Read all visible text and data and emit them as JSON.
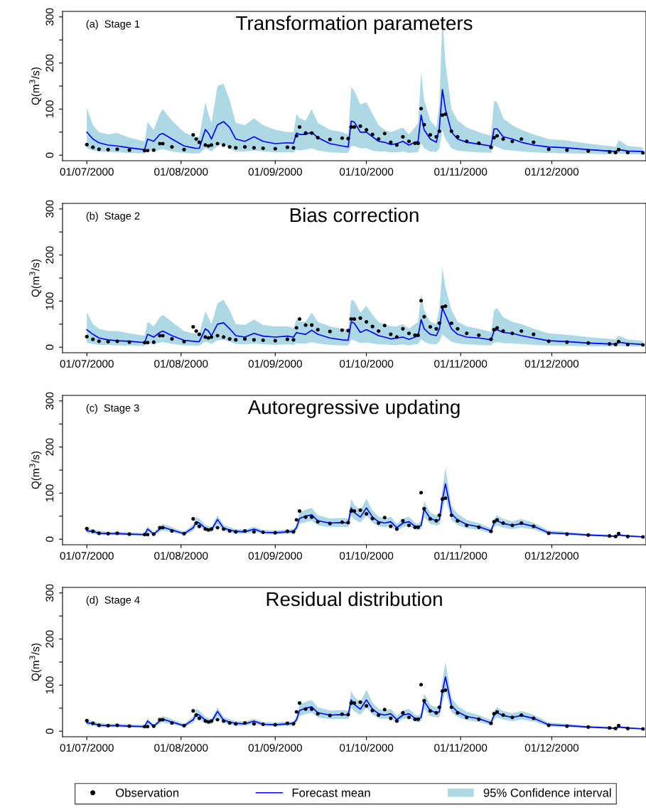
{
  "chart_data": [
    {
      "type": "line",
      "title": "Transformation parameters",
      "subtitle": "(a)  Stage 1",
      "ylabel": "Q(m$^{3}$/s)",
      "xlim": [
        "2000-06-23",
        "2001-01-01"
      ],
      "ylim": [
        -12,
        312
      ],
      "xticks": [
        {
          "value": "2000-07-01",
          "label": "01/07/2000"
        },
        {
          "value": "2000-08-01",
          "label": "01/08/2000"
        },
        {
          "value": "2000-09-01",
          "label": "01/09/2000"
        },
        {
          "value": "2000-10-01",
          "label": "01/10/2000"
        },
        {
          "value": "2000-11-01",
          "label": "01/11/2000"
        },
        {
          "value": "2000-12-01",
          "label": "01/12/2000"
        }
      ],
      "yticks": [
        0,
        {
          "value": 50,
          "label": null
        },
        100,
        {
          "value": 150,
          "label": null
        },
        200,
        {
          "value": 250,
          "label": null
        },
        300
      ],
      "grid": false,
      "x": [
        "2000-07-01",
        "2000-07-03",
        "2000-07-05",
        "2000-07-08",
        "2000-07-11",
        "2000-07-15",
        "2000-07-20",
        "2000-07-21",
        "2000-07-23",
        "2000-07-25",
        "2000-07-26",
        "2000-07-29",
        "2000-08-02",
        "2000-08-05",
        "2000-08-06",
        "2000-08-07",
        "2000-08-09",
        "2000-08-10",
        "2000-08-11",
        "2000-08-13",
        "2000-08-15",
        "2000-08-17",
        "2000-08-19",
        "2000-08-22",
        "2000-08-25",
        "2000-08-28",
        "2000-09-01",
        "2000-09-05",
        "2000-09-07",
        "2000-09-08",
        "2000-09-09",
        "2000-09-11",
        "2000-09-13",
        "2000-09-15",
        "2000-09-19",
        "2000-09-23",
        "2000-09-25",
        "2000-09-26",
        "2000-09-27",
        "2000-09-29",
        "2000-10-01",
        "2000-10-03",
        "2000-10-05",
        "2000-10-07",
        "2000-10-09",
        "2000-10-11",
        "2000-10-13",
        "2000-10-15",
        "2000-10-17",
        "2000-10-18",
        "2000-10-19",
        "2000-10-20",
        "2000-10-22",
        "2000-10-24",
        "2000-10-25",
        "2000-10-26",
        "2000-10-27",
        "2000-10-29",
        "2000-10-31",
        "2000-11-03",
        "2000-11-07",
        "2000-11-11",
        "2000-11-12",
        "2000-11-13",
        "2000-11-15",
        "2000-11-18",
        "2000-11-21",
        "2000-11-25",
        "2000-11-30",
        "2000-12-06",
        "2000-12-13",
        "2000-12-20",
        "2000-12-22",
        "2000-12-23",
        "2000-12-26",
        "2000-12-31"
      ],
      "series": [
        {
          "type": "line",
          "color": "#0000ff",
          "lower": [
            15,
            10,
            8,
            7,
            6,
            5,
            4,
            10,
            8,
            12,
            13,
            8,
            5,
            4,
            4,
            4,
            15,
            12,
            8,
            20,
            25,
            15,
            8,
            8,
            10,
            8,
            6,
            6,
            6,
            12,
            10,
            12,
            15,
            10,
            6,
            5,
            5,
            20,
            20,
            15,
            15,
            10,
            8,
            8,
            6,
            6,
            8,
            5,
            6,
            7,
            25,
            15,
            8,
            7,
            15,
            55,
            35,
            15,
            10,
            8,
            6,
            5,
            20,
            18,
            12,
            10,
            8,
            6,
            5,
            4,
            3,
            2,
            2,
            4,
            2,
            2
          ],
          "upper": [
            103,
            65,
            50,
            45,
            48,
            38,
            30,
            72,
            55,
            90,
            100,
            75,
            50,
            40,
            40,
            40,
            115,
            90,
            70,
            150,
            155,
            120,
            70,
            65,
            80,
            65,
            55,
            50,
            50,
            90,
            80,
            75,
            100,
            70,
            55,
            50,
            45,
            148,
            140,
            110,
            115,
            90,
            65,
            55,
            50,
            55,
            60,
            45,
            60,
            70,
            180,
            120,
            75,
            60,
            110,
            300,
            200,
            100,
            75,
            60,
            50,
            42,
            118,
            115,
            80,
            65,
            55,
            45,
            35,
            32,
            25,
            20,
            18,
            33,
            20,
            17
          ],
          "values": [
            50,
            35,
            27,
            22,
            20,
            16,
            12,
            35,
            30,
            45,
            47,
            35,
            20,
            16,
            15,
            15,
            56,
            48,
            35,
            66,
            73,
            60,
            35,
            30,
            40,
            30,
            25,
            27,
            26,
            48,
            45,
            45,
            50,
            38,
            25,
            20,
            18,
            74,
            72,
            50,
            50,
            40,
            30,
            28,
            23,
            25,
            30,
            22,
            28,
            30,
            87,
            55,
            35,
            28,
            60,
            142,
            100,
            50,
            35,
            28,
            24,
            20,
            57,
            57,
            40,
            35,
            28,
            22,
            18,
            16,
            12,
            9,
            8,
            12,
            9,
            8
          ]
        },
        {
          "type": "scatter",
          "color": "#000000",
          "marker": "circle",
          "values": [
            23,
            17,
            13,
            12,
            13,
            11,
            10,
            10,
            11,
            25,
            25,
            18,
            12,
            44,
            35,
            28,
            22,
            20,
            22,
            25,
            22,
            18,
            16,
            18,
            16,
            15,
            14,
            17,
            16,
            42,
            61,
            48,
            48,
            38,
            34,
            37,
            36,
            61,
            61,
            63,
            55,
            45,
            35,
            47,
            28,
            22,
            40,
            30,
            26,
            26,
            101,
            66,
            44,
            40,
            52,
            87,
            89,
            52,
            40,
            30,
            26,
            17,
            38,
            42,
            35,
            30,
            35,
            28,
            13,
            11,
            9,
            7,
            6,
            12,
            6,
            5
          ]
        }
      ]
    },
    {
      "type": "line",
      "title": "Bias correction",
      "subtitle": "(b)  Stage 2",
      "ylabel": "Q(m$^{3}$/s)",
      "xlim": [
        "2000-06-23",
        "2001-01-01"
      ],
      "ylim": [
        -12,
        312
      ],
      "xticks": [
        {
          "value": "2000-07-01",
          "label": "01/07/2000"
        },
        {
          "value": "2000-08-01",
          "label": "01/08/2000"
        },
        {
          "value": "2000-09-01",
          "label": "01/09/2000"
        },
        {
          "value": "2000-10-01",
          "label": "01/10/2000"
        },
        {
          "value": "2000-11-01",
          "label": "01/11/2000"
        },
        {
          "value": "2000-12-01",
          "label": "01/12/2000"
        }
      ],
      "yticks": [
        0,
        {
          "value": 50,
          "label": null
        },
        100,
        {
          "value": 150,
          "label": null
        },
        200,
        {
          "value": 250,
          "label": null
        },
        300
      ],
      "grid": false,
      "x": [
        "2000-07-01",
        "2000-07-03",
        "2000-07-05",
        "2000-07-08",
        "2000-07-11",
        "2000-07-15",
        "2000-07-20",
        "2000-07-21",
        "2000-07-23",
        "2000-07-25",
        "2000-07-26",
        "2000-07-29",
        "2000-08-02",
        "2000-08-05",
        "2000-08-06",
        "2000-08-07",
        "2000-08-09",
        "2000-08-10",
        "2000-08-11",
        "2000-08-13",
        "2000-08-15",
        "2000-08-17",
        "2000-08-19",
        "2000-08-22",
        "2000-08-25",
        "2000-08-28",
        "2000-09-01",
        "2000-09-05",
        "2000-09-07",
        "2000-09-08",
        "2000-09-09",
        "2000-09-11",
        "2000-09-13",
        "2000-09-15",
        "2000-09-19",
        "2000-09-23",
        "2000-09-25",
        "2000-09-26",
        "2000-09-27",
        "2000-09-29",
        "2000-10-01",
        "2000-10-03",
        "2000-10-05",
        "2000-10-07",
        "2000-10-09",
        "2000-10-11",
        "2000-10-13",
        "2000-10-15",
        "2000-10-17",
        "2000-10-18",
        "2000-10-19",
        "2000-10-20",
        "2000-10-22",
        "2000-10-24",
        "2000-10-25",
        "2000-10-26",
        "2000-10-27",
        "2000-10-29",
        "2000-10-31",
        "2000-11-03",
        "2000-11-07",
        "2000-11-11",
        "2000-11-12",
        "2000-11-13",
        "2000-11-15",
        "2000-11-18",
        "2000-11-21",
        "2000-11-25",
        "2000-11-30",
        "2000-12-06",
        "2000-12-13",
        "2000-12-20",
        "2000-12-22",
        "2000-12-23",
        "2000-12-26",
        "2000-12-31"
      ],
      "series": [
        {
          "type": "line",
          "color": "#0000ff",
          "lower": [
            10,
            7,
            5,
            5,
            4,
            4,
            3,
            8,
            6,
            10,
            11,
            7,
            4,
            4,
            3,
            3,
            12,
            10,
            7,
            15,
            16,
            12,
            7,
            6,
            8,
            6,
            5,
            6,
            5,
            9,
            8,
            8,
            11,
            8,
            5,
            4,
            4,
            16,
            15,
            9,
            10,
            8,
            6,
            6,
            5,
            5,
            6,
            4,
            6,
            7,
            18,
            12,
            7,
            6,
            12,
            28,
            22,
            12,
            8,
            6,
            5,
            4,
            10,
            11,
            9,
            8,
            7,
            5,
            4,
            3,
            2,
            2,
            2,
            3,
            2,
            2
          ],
          "upper": [
            75,
            50,
            40,
            35,
            35,
            30,
            25,
            55,
            45,
            65,
            70,
            55,
            35,
            30,
            30,
            30,
            78,
            65,
            50,
            95,
            103,
            80,
            50,
            48,
            60,
            48,
            45,
            45,
            42,
            60,
            55,
            55,
            75,
            55,
            45,
            40,
            38,
            103,
            100,
            75,
            90,
            70,
            55,
            50,
            45,
            45,
            50,
            40,
            50,
            55,
            115,
            80,
            55,
            50,
            85,
            172,
            130,
            80,
            55,
            45,
            40,
            33,
            80,
            85,
            65,
            55,
            50,
            40,
            30,
            27,
            22,
            18,
            17,
            25,
            17,
            14
          ],
          "values": [
            38,
            28,
            20,
            16,
            14,
            13,
            10,
            28,
            22,
            32,
            35,
            25,
            15,
            13,
            12,
            12,
            40,
            35,
            25,
            50,
            53,
            40,
            25,
            22,
            30,
            24,
            22,
            24,
            22,
            32,
            30,
            28,
            37,
            28,
            20,
            16,
            15,
            55,
            52,
            32,
            38,
            32,
            25,
            22,
            18,
            20,
            22,
            17,
            22,
            25,
            60,
            40,
            28,
            25,
            40,
            85,
            70,
            40,
            28,
            22,
            20,
            16,
            35,
            38,
            32,
            30,
            25,
            20,
            14,
            12,
            9,
            7,
            7,
            11,
            8,
            6
          ]
        },
        {
          "type": "scatter",
          "color": "#000000",
          "marker": "circle",
          "values": [
            23,
            17,
            13,
            12,
            13,
            11,
            10,
            10,
            11,
            25,
            25,
            18,
            12,
            44,
            35,
            28,
            22,
            20,
            22,
            25,
            22,
            18,
            16,
            18,
            16,
            15,
            14,
            17,
            16,
            42,
            61,
            48,
            48,
            38,
            34,
            37,
            36,
            61,
            61,
            63,
            55,
            45,
            35,
            47,
            28,
            22,
            40,
            30,
            26,
            26,
            101,
            66,
            44,
            40,
            52,
            87,
            89,
            52,
            40,
            30,
            26,
            17,
            38,
            42,
            35,
            30,
            35,
            28,
            13,
            11,
            9,
            7,
            6,
            12,
            6,
            5
          ]
        }
      ]
    },
    {
      "type": "line",
      "title": "Autoregressive updating",
      "subtitle": "(c)  Stage 3",
      "ylabel": "Q(m$^{3}$/s)",
      "xlim": [
        "2000-06-23",
        "2001-01-01"
      ],
      "ylim": [
        -12,
        312
      ],
      "xticks": [
        {
          "value": "2000-07-01",
          "label": "01/07/2000"
        },
        {
          "value": "2000-08-01",
          "label": "01/08/2000"
        },
        {
          "value": "2000-09-01",
          "label": "01/09/2000"
        },
        {
          "value": "2000-10-01",
          "label": "01/10/2000"
        },
        {
          "value": "2000-11-01",
          "label": "01/11/2000"
        },
        {
          "value": "2000-12-01",
          "label": "01/12/2000"
        }
      ],
      "yticks": [
        0,
        {
          "value": 50,
          "label": null
        },
        100,
        {
          "value": 150,
          "label": null
        },
        200,
        {
          "value": 250,
          "label": null
        },
        300
      ],
      "grid": false,
      "x": [
        "2000-07-01",
        "2000-07-03",
        "2000-07-05",
        "2000-07-08",
        "2000-07-11",
        "2000-07-15",
        "2000-07-20",
        "2000-07-21",
        "2000-07-23",
        "2000-07-25",
        "2000-07-26",
        "2000-07-29",
        "2000-08-02",
        "2000-08-05",
        "2000-08-06",
        "2000-08-07",
        "2000-08-09",
        "2000-08-10",
        "2000-08-11",
        "2000-08-13",
        "2000-08-15",
        "2000-08-17",
        "2000-08-19",
        "2000-08-22",
        "2000-08-25",
        "2000-08-28",
        "2000-09-01",
        "2000-09-05",
        "2000-09-07",
        "2000-09-08",
        "2000-09-09",
        "2000-09-11",
        "2000-09-13",
        "2000-09-15",
        "2000-09-19",
        "2000-09-23",
        "2000-09-25",
        "2000-09-26",
        "2000-09-27",
        "2000-09-29",
        "2000-10-01",
        "2000-10-03",
        "2000-10-05",
        "2000-10-07",
        "2000-10-09",
        "2000-10-11",
        "2000-10-13",
        "2000-10-15",
        "2000-10-17",
        "2000-10-18",
        "2000-10-19",
        "2000-10-20",
        "2000-10-22",
        "2000-10-24",
        "2000-10-25",
        "2000-10-26",
        "2000-10-27",
        "2000-10-29",
        "2000-10-31",
        "2000-11-03",
        "2000-11-07",
        "2000-11-11",
        "2000-11-12",
        "2000-11-13",
        "2000-11-15",
        "2000-11-18",
        "2000-11-21",
        "2000-11-25",
        "2000-11-30",
        "2000-12-06",
        "2000-12-13",
        "2000-12-20",
        "2000-12-22",
        "2000-12-23",
        "2000-12-26",
        "2000-12-31"
      ],
      "series": [
        {
          "type": "line",
          "color": "#0000ff",
          "lower": [
            13,
            12,
            9,
            9,
            9,
            8,
            7,
            16,
            8,
            16,
            19,
            15,
            9,
            18,
            28,
            26,
            18,
            16,
            15,
            32,
            18,
            15,
            12,
            12,
            16,
            11,
            10,
            12,
            12,
            18,
            33,
            37,
            40,
            30,
            26,
            27,
            26,
            51,
            43,
            36,
            51,
            36,
            28,
            26,
            28,
            18,
            26,
            28,
            21,
            19,
            22,
            48,
            33,
            30,
            31,
            63,
            90,
            41,
            31,
            24,
            20,
            13,
            26,
            30,
            25,
            22,
            25,
            21,
            10,
            9,
            7,
            5,
            4,
            7,
            5,
            4
          ],
          "upper": [
            24,
            22,
            18,
            16,
            16,
            15,
            14,
            28,
            15,
            28,
            33,
            26,
            16,
            32,
            48,
            45,
            31,
            29,
            26,
            52,
            31,
            26,
            22,
            21,
            27,
            20,
            19,
            21,
            22,
            33,
            58,
            64,
            68,
            52,
            45,
            46,
            45,
            88,
            75,
            62,
            88,
            62,
            49,
            45,
            49,
            33,
            45,
            49,
            36,
            34,
            40,
            82,
            58,
            52,
            55,
            110,
            155,
            72,
            55,
            42,
            35,
            24,
            45,
            52,
            44,
            39,
            44,
            36,
            19,
            16,
            12,
            10,
            9,
            12,
            9,
            7
          ],
          "values": [
            18,
            17,
            13,
            12,
            12,
            11,
            10,
            22,
            11,
            22,
            26,
            20,
            12,
            25,
            38,
            35,
            24,
            22,
            20,
            43,
            24,
            20,
            17,
            16,
            22,
            15,
            14,
            16,
            17,
            25,
            45,
            50,
            53,
            40,
            35,
            36,
            35,
            68,
            58,
            48,
            68,
            48,
            38,
            35,
            38,
            25,
            35,
            38,
            28,
            26,
            30,
            65,
            45,
            40,
            42,
            85,
            120,
            55,
            42,
            32,
            27,
            18,
            35,
            40,
            34,
            30,
            34,
            28,
            14,
            12,
            9,
            7,
            6,
            9,
            7,
            5
          ]
        },
        {
          "type": "scatter",
          "color": "#000000",
          "marker": "circle",
          "values": [
            23,
            17,
            13,
            12,
            13,
            11,
            10,
            10,
            11,
            25,
            25,
            18,
            12,
            44,
            35,
            28,
            22,
            20,
            22,
            25,
            22,
            18,
            16,
            18,
            16,
            15,
            14,
            17,
            16,
            42,
            61,
            48,
            48,
            38,
            34,
            37,
            36,
            61,
            61,
            63,
            55,
            45,
            35,
            47,
            28,
            22,
            40,
            30,
            26,
            26,
            101,
            66,
            44,
            40,
            52,
            87,
            89,
            52,
            40,
            30,
            26,
            17,
            38,
            42,
            35,
            30,
            35,
            28,
            13,
            11,
            9,
            7,
            6,
            12,
            6,
            5
          ]
        }
      ]
    },
    {
      "type": "line",
      "title": "Residual distribution",
      "subtitle": "(d)  Stage 4",
      "ylabel": "Q(m$^{3}$/s)",
      "xlim": [
        "2000-06-23",
        "2001-01-01"
      ],
      "ylim": [
        -12,
        312
      ],
      "xticks": [
        {
          "value": "2000-07-01",
          "label": "01/07/2000"
        },
        {
          "value": "2000-08-01",
          "label": "01/08/2000"
        },
        {
          "value": "2000-09-01",
          "label": "01/09/2000"
        },
        {
          "value": "2000-10-01",
          "label": "01/10/2000"
        },
        {
          "value": "2000-11-01",
          "label": "01/11/2000"
        },
        {
          "value": "2000-12-01",
          "label": "01/12/2000"
        }
      ],
      "yticks": [
        0,
        {
          "value": 50,
          "label": null
        },
        100,
        {
          "value": 150,
          "label": null
        },
        200,
        {
          "value": 250,
          "label": null
        },
        300
      ],
      "grid": false,
      "legend": "bottom",
      "annotations": [
        "95% Confidence interval"
      ],
      "x": [
        "2000-07-01",
        "2000-07-03",
        "2000-07-05",
        "2000-07-08",
        "2000-07-11",
        "2000-07-15",
        "2000-07-20",
        "2000-07-21",
        "2000-07-23",
        "2000-07-25",
        "2000-07-26",
        "2000-07-29",
        "2000-08-02",
        "2000-08-05",
        "2000-08-06",
        "2000-08-07",
        "2000-08-09",
        "2000-08-10",
        "2000-08-11",
        "2000-08-13",
        "2000-08-15",
        "2000-08-17",
        "2000-08-19",
        "2000-08-22",
        "2000-08-25",
        "2000-08-28",
        "2000-09-01",
        "2000-09-05",
        "2000-09-07",
        "2000-09-08",
        "2000-09-09",
        "2000-09-11",
        "2000-09-13",
        "2000-09-15",
        "2000-09-19",
        "2000-09-23",
        "2000-09-25",
        "2000-09-26",
        "2000-09-27",
        "2000-09-29",
        "2000-10-01",
        "2000-10-03",
        "2000-10-05",
        "2000-10-07",
        "2000-10-09",
        "2000-10-11",
        "2000-10-13",
        "2000-10-15",
        "2000-10-17",
        "2000-10-18",
        "2000-10-19",
        "2000-10-20",
        "2000-10-22",
        "2000-10-24",
        "2000-10-25",
        "2000-10-26",
        "2000-10-27",
        "2000-10-29",
        "2000-10-31",
        "2000-11-03",
        "2000-11-07",
        "2000-11-11",
        "2000-11-12",
        "2000-11-13",
        "2000-11-15",
        "2000-11-18",
        "2000-11-21",
        "2000-11-25",
        "2000-11-30",
        "2000-12-06",
        "2000-12-13",
        "2000-12-20",
        "2000-12-22",
        "2000-12-23",
        "2000-12-26",
        "2000-12-31"
      ],
      "series": [
        {
          "type": "line",
          "name": "Forecast mean",
          "color": "#0000ff",
          "lower": [
            13,
            12,
            9,
            9,
            9,
            8,
            7,
            16,
            8,
            16,
            19,
            15,
            9,
            18,
            28,
            26,
            18,
            16,
            15,
            32,
            18,
            15,
            12,
            12,
            16,
            11,
            10,
            12,
            12,
            18,
            33,
            37,
            40,
            30,
            26,
            27,
            26,
            51,
            43,
            36,
            51,
            36,
            28,
            26,
            28,
            18,
            26,
            28,
            21,
            19,
            22,
            48,
            33,
            30,
            31,
            63,
            88,
            41,
            31,
            24,
            20,
            13,
            26,
            30,
            25,
            22,
            25,
            21,
            10,
            9,
            7,
            5,
            4,
            7,
            5,
            4
          ],
          "upper": [
            24,
            22,
            18,
            16,
            16,
            15,
            14,
            28,
            15,
            28,
            33,
            26,
            16,
            32,
            48,
            45,
            31,
            29,
            26,
            52,
            31,
            26,
            22,
            21,
            27,
            20,
            19,
            21,
            22,
            33,
            58,
            64,
            68,
            52,
            45,
            46,
            45,
            88,
            75,
            62,
            90,
            62,
            49,
            45,
            49,
            33,
            45,
            49,
            36,
            34,
            40,
            82,
            58,
            52,
            55,
            110,
            150,
            72,
            55,
            42,
            35,
            24,
            45,
            52,
            44,
            39,
            44,
            36,
            19,
            16,
            12,
            10,
            9,
            12,
            9,
            7
          ],
          "values": [
            18,
            17,
            13,
            12,
            12,
            11,
            10,
            22,
            11,
            22,
            26,
            20,
            12,
            25,
            38,
            35,
            24,
            22,
            20,
            43,
            24,
            20,
            17,
            16,
            22,
            15,
            14,
            16,
            17,
            25,
            45,
            50,
            53,
            40,
            35,
            36,
            35,
            68,
            58,
            48,
            68,
            48,
            38,
            35,
            38,
            25,
            35,
            38,
            28,
            26,
            30,
            65,
            45,
            40,
            42,
            85,
            118,
            55,
            42,
            32,
            27,
            18,
            35,
            40,
            34,
            30,
            34,
            28,
            14,
            12,
            9,
            7,
            6,
            9,
            7,
            5
          ]
        },
        {
          "type": "scatter",
          "name": "Observation",
          "color": "#000000",
          "marker": "circle",
          "values": [
            23,
            17,
            13,
            12,
            13,
            11,
            10,
            10,
            11,
            25,
            25,
            18,
            12,
            44,
            35,
            28,
            22,
            20,
            22,
            25,
            22,
            18,
            16,
            18,
            16,
            15,
            14,
            17,
            16,
            42,
            61,
            48,
            48,
            38,
            34,
            37,
            36,
            61,
            61,
            63,
            55,
            45,
            35,
            47,
            28,
            22,
            40,
            30,
            26,
            26,
            101,
            66,
            44,
            40,
            52,
            87,
            89,
            52,
            40,
            30,
            26,
            17,
            38,
            42,
            35,
            30,
            35,
            28,
            13,
            11,
            9,
            7,
            6,
            12,
            6,
            5
          ]
        }
      ]
    }
  ]
}
